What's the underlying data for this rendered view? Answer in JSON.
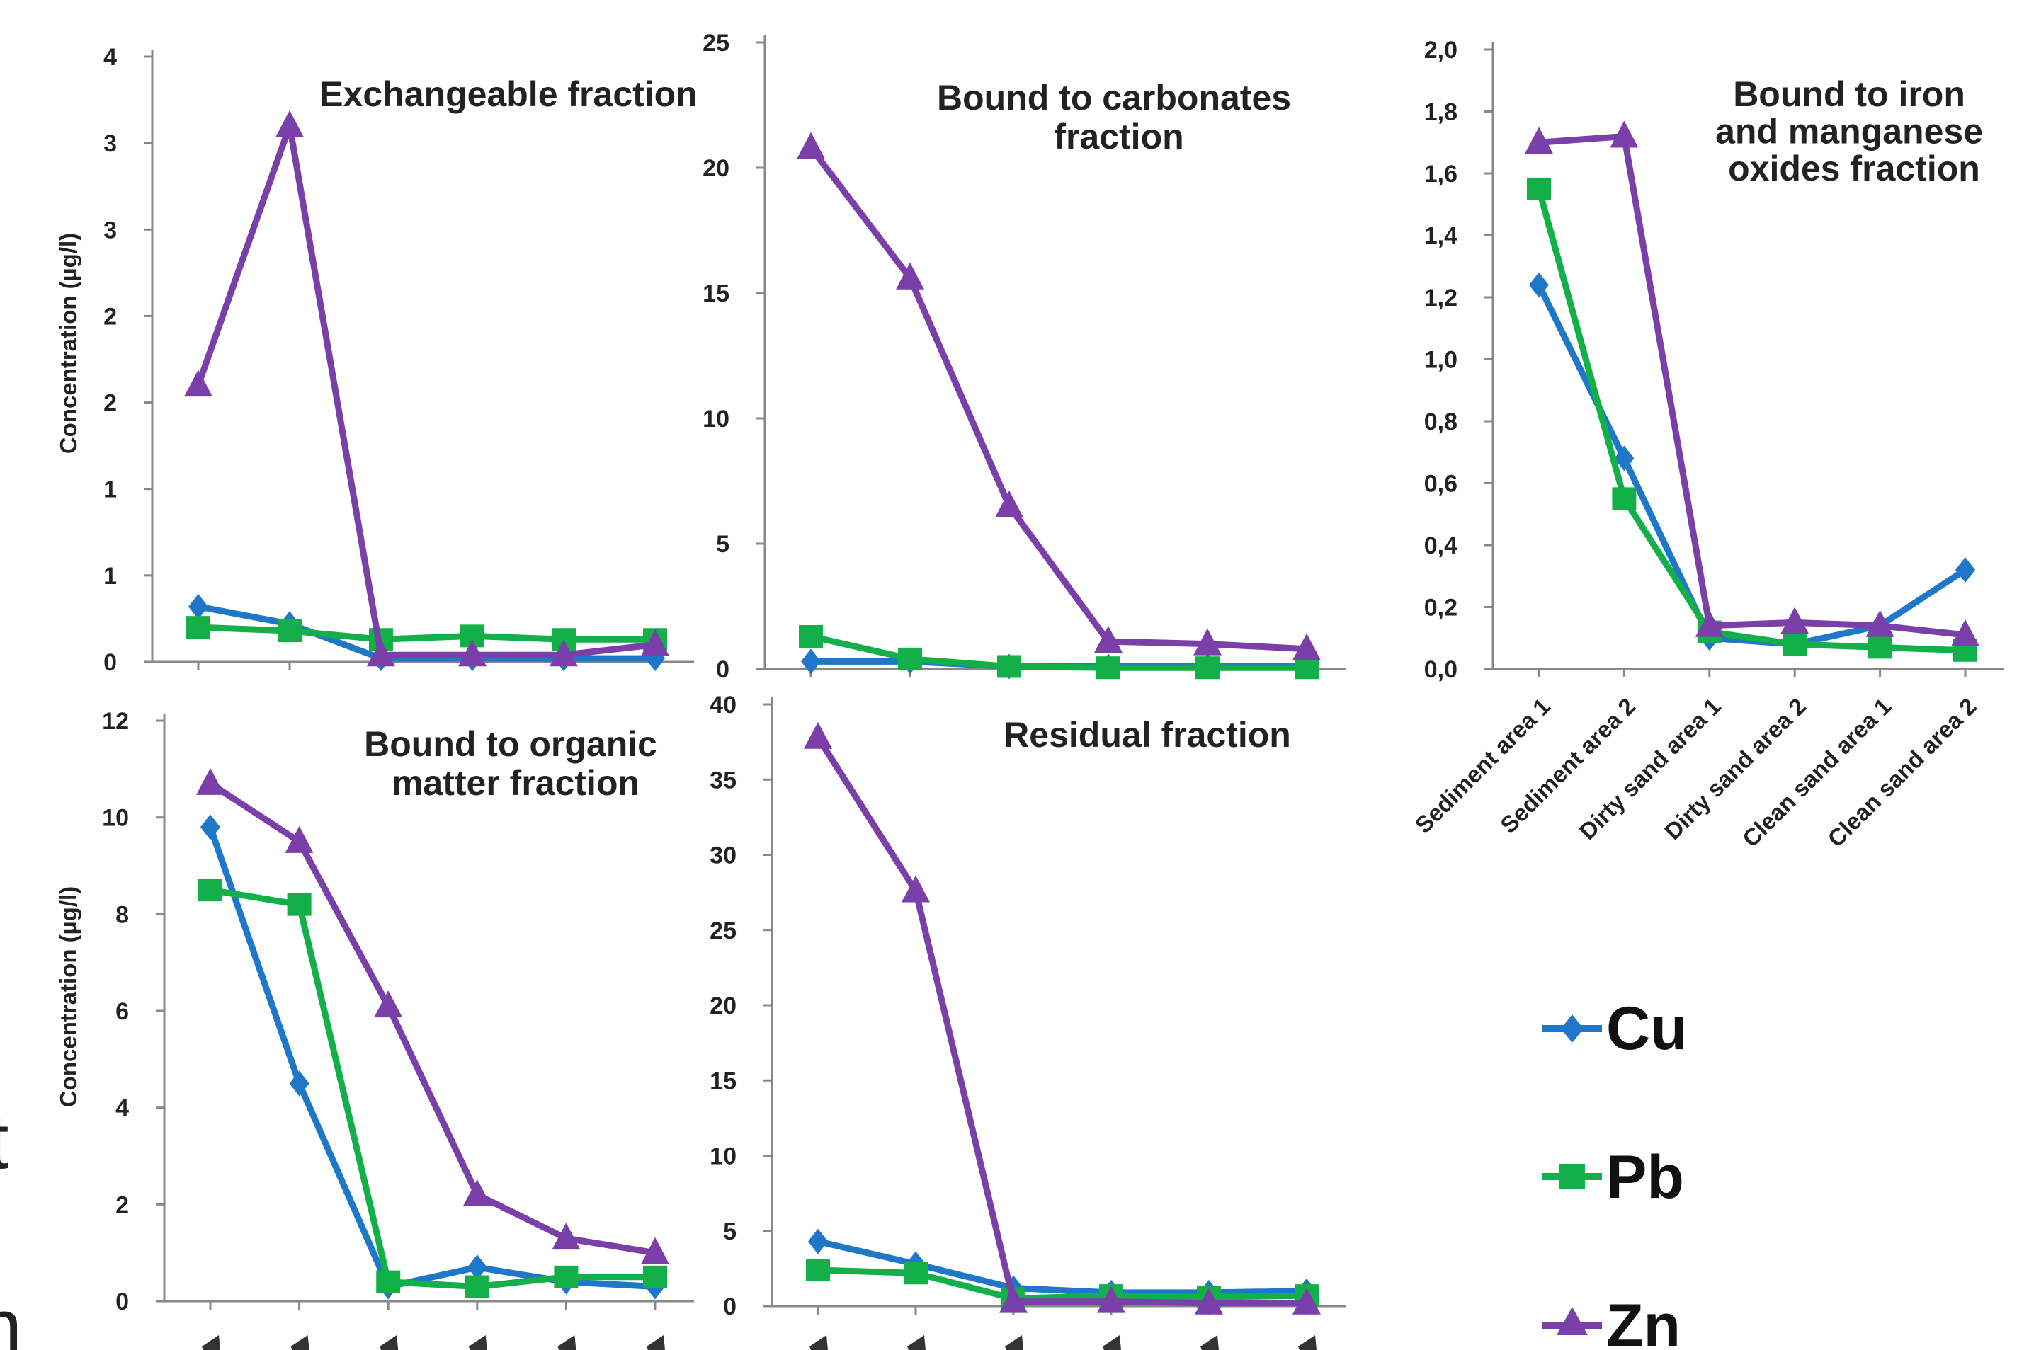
{
  "colors": {
    "Cu": "#1f77c9",
    "Pb": "#13b04a",
    "Zn": "#7a3fa8",
    "axis": "#888888"
  },
  "legend": [
    "Cu",
    "Pb",
    "Zn"
  ],
  "x_categories": [
    "Sediment area 1",
    "Sediment area 2",
    "Dirty sand area 1",
    "Dirty sand area 2",
    "Clean sand area 1",
    "Clean sand area 2"
  ],
  "stray_text": [
    "t",
    "n"
  ],
  "chart_data": [
    {
      "type": "line",
      "title": "Exchangeable fraction",
      "ylabel": "Concentration (µg/l)",
      "ytick_labels": [
        "0",
        "1",
        "1",
        "2",
        "2",
        "3",
        "3",
        "4"
      ],
      "ylim": [
        0,
        3.5
      ],
      "categories": [
        "Sediment area 1",
        "Sediment area 2",
        "Dirty sand area 1",
        "Dirty sand area 2",
        "Clean sand area 1",
        "Clean sand area 2"
      ],
      "series": [
        {
          "name": "Cu",
          "values": [
            0.32,
            0.22,
            0.02,
            0.02,
            0.02,
            0.02
          ]
        },
        {
          "name": "Pb",
          "values": [
            0.2,
            0.18,
            0.13,
            0.15,
            0.13,
            0.13
          ]
        },
        {
          "name": "Zn",
          "values": [
            1.6,
            3.1,
            0.04,
            0.04,
            0.04,
            0.1
          ]
        }
      ]
    },
    {
      "type": "line",
      "title": "Bound to carbonates fraction",
      "ylabel": "",
      "ytick_labels": [
        "0",
        "5",
        "10",
        "15",
        "20",
        "25"
      ],
      "ylim": [
        0,
        25
      ],
      "categories": [
        "Sediment area 1",
        "Sediment area 2",
        "Dirty sand area 1",
        "Dirty sand area 2",
        "Clean sand area 1",
        "Clean sand area 2"
      ],
      "series": [
        {
          "name": "Cu",
          "values": [
            0.3,
            0.3,
            0.1,
            0.1,
            0.1,
            0.1
          ]
        },
        {
          "name": "Pb",
          "values": [
            1.3,
            0.4,
            0.1,
            0.05,
            0.05,
            0.05
          ]
        },
        {
          "name": "Zn",
          "values": [
            20.8,
            15.6,
            6.5,
            1.1,
            1.0,
            0.8
          ]
        }
      ]
    },
    {
      "type": "line",
      "title": "Bound to iron and manganese oxides fraction",
      "ylabel": "",
      "ytick_labels": [
        "0,0",
        "0,2",
        "0,4",
        "0,6",
        "0,8",
        "1,0",
        "1,2",
        "1,4",
        "1,6",
        "1,8",
        "2,0"
      ],
      "ylim": [
        0,
        2
      ],
      "categories": [
        "Sediment area 1",
        "Sediment area 2",
        "Dirty sand area 1",
        "Dirty sand area 2",
        "Clean sand area 1",
        "Clean sand area 2"
      ],
      "series": [
        {
          "name": "Cu",
          "values": [
            1.24,
            0.68,
            0.1,
            0.08,
            0.14,
            0.32
          ]
        },
        {
          "name": "Pb",
          "values": [
            1.55,
            0.55,
            0.12,
            0.08,
            0.07,
            0.06
          ]
        },
        {
          "name": "Zn",
          "values": [
            1.7,
            1.72,
            0.14,
            0.15,
            0.14,
            0.11
          ]
        }
      ]
    },
    {
      "type": "line",
      "title": "Bound to organic matter fraction",
      "ylabel": "Concentration (µg/l)",
      "ytick_labels": [
        "0",
        "2",
        "4",
        "6",
        "8",
        "10",
        "12"
      ],
      "ylim": [
        0,
        12
      ],
      "categories": [
        "Sediment area 1",
        "Sediment area 2",
        "Dirty sand area 1",
        "Dirty sand area 2",
        "Clean sand area 1",
        "Clean sand area 2"
      ],
      "series": [
        {
          "name": "Cu",
          "values": [
            9.8,
            4.5,
            0.3,
            0.7,
            0.4,
            0.3
          ]
        },
        {
          "name": "Pb",
          "values": [
            8.5,
            8.2,
            0.4,
            0.3,
            0.5,
            0.5
          ]
        },
        {
          "name": "Zn",
          "values": [
            10.7,
            9.5,
            6.1,
            2.2,
            1.3,
            1.0
          ]
        }
      ]
    },
    {
      "type": "line",
      "title": "Residual fraction",
      "ylabel": "",
      "ytick_labels": [
        "0",
        "5",
        "10",
        "15",
        "20",
        "25",
        "30",
        "35",
        "40"
      ],
      "ylim": [
        0,
        40
      ],
      "categories": [
        "Sediment area 1",
        "Sediment area 2",
        "Dirty sand area 1",
        "Dirty sand area 2",
        "Clean sand area 1",
        "Clean sand area 2"
      ],
      "series": [
        {
          "name": "Cu",
          "values": [
            4.3,
            2.8,
            1.2,
            0.9,
            0.9,
            1.0
          ]
        },
        {
          "name": "Pb",
          "values": [
            2.4,
            2.2,
            0.5,
            0.7,
            0.6,
            0.7
          ]
        },
        {
          "name": "Zn",
          "values": [
            37.8,
            27.6,
            0.3,
            0.3,
            0.2,
            0.2
          ]
        }
      ]
    }
  ]
}
